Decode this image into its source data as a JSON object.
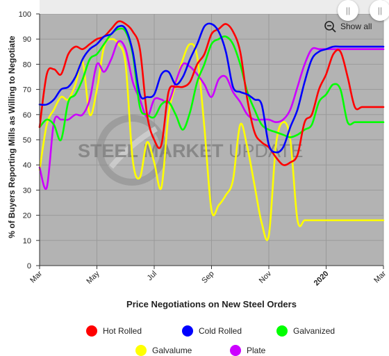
{
  "chart_data": {
    "type": "line",
    "xlabel": "Price Negotiations on New Steel Orders",
    "ylabel": "% of Buyers Reporting Mills as Willing to Negotiate",
    "ylim": [
      0,
      100
    ],
    "yticks": [
      0,
      10,
      20,
      30,
      40,
      50,
      60,
      70,
      80,
      90,
      100
    ],
    "xlim": [
      0,
      24
    ],
    "xticks": [
      {
        "x": 0,
        "label": "Mar",
        "bold": false
      },
      {
        "x": 4,
        "label": "May",
        "bold": false
      },
      {
        "x": 8,
        "label": "Jul",
        "bold": false
      },
      {
        "x": 12,
        "label": "Sep",
        "bold": false
      },
      {
        "x": 16,
        "label": "Nov",
        "bold": false
      },
      {
        "x": 20,
        "label": "2020",
        "bold": true
      },
      {
        "x": 24,
        "label": "Mar",
        "bold": false
      }
    ],
    "grid": true,
    "legend_position": "bottom",
    "watermark": "STEEL MARKET UPDATE",
    "series": [
      {
        "name": "Hot Rolled",
        "color": "#ff0000",
        "x": [
          0,
          0.5,
          1,
          1.5,
          2,
          2.5,
          3,
          3.5,
          4,
          4.5,
          5,
          5.5,
          6,
          6.5,
          7,
          7.5,
          8,
          8.5,
          9,
          9.5,
          10,
          10.5,
          11,
          11.5,
          12,
          12.5,
          13,
          13.5,
          14,
          14.5,
          15,
          15.5,
          16,
          16.5,
          17,
          17.5,
          18,
          18.5,
          19,
          19.5,
          20,
          20.5,
          21,
          21.5,
          22,
          22.5,
          23,
          23.5,
          24
        ],
        "y": [
          55,
          76,
          78,
          76,
          84,
          87,
          86,
          88,
          90,
          91,
          94,
          97,
          96,
          93,
          86,
          60,
          50,
          48,
          69,
          71,
          71,
          73,
          80,
          84,
          92,
          94,
          96,
          93,
          85,
          66,
          53,
          49,
          47,
          43,
          40,
          41,
          44,
          57,
          60,
          70,
          76,
          84,
          85,
          75,
          63,
          63,
          63,
          63,
          63
        ]
      },
      {
        "name": "Cold Rolled",
        "color": "#0000ff",
        "x": [
          0,
          0.5,
          1,
          1.5,
          2,
          2.5,
          3,
          3.5,
          4,
          4.5,
          5,
          5.5,
          6,
          6.5,
          7,
          7.5,
          8,
          8.5,
          9,
          9.5,
          10,
          10.5,
          11,
          11.5,
          12,
          12.5,
          13,
          13.5,
          14,
          14.5,
          15,
          15.5,
          16,
          16.5,
          17,
          17.5,
          18,
          18.5,
          19,
          19.5,
          20,
          20.5,
          21,
          21.5,
          22,
          22.5,
          23,
          23.5,
          24
        ],
        "y": [
          64,
          64,
          66,
          70,
          71,
          75,
          82,
          86,
          88,
          91,
          92,
          95,
          94,
          85,
          68,
          67,
          68,
          76,
          77,
          72,
          75,
          82,
          88,
          95,
          96,
          93,
          85,
          71,
          69,
          68,
          66,
          64,
          48,
          45,
          47,
          55,
          62,
          73,
          82,
          85,
          86,
          87,
          87,
          87,
          87,
          87,
          87,
          87,
          87
        ]
      },
      {
        "name": "Galvanized",
        "color": "#00ff00",
        "x": [
          0,
          0.5,
          1,
          1.5,
          2,
          2.5,
          3,
          3.5,
          4,
          4.5,
          5,
          5.5,
          6,
          6.5,
          7,
          7.5,
          8,
          8.5,
          9,
          9.5,
          10,
          10.5,
          11,
          11.5,
          12,
          12.5,
          13,
          13.5,
          14,
          14.5,
          15,
          15.5,
          16,
          16.5,
          17,
          17.5,
          18,
          18.5,
          19,
          19.5,
          20,
          20.5,
          21,
          21.5,
          22,
          22.5,
          23,
          23.5,
          24
        ],
        "y": [
          55,
          58,
          56,
          50,
          65,
          68,
          74,
          82,
          84,
          88,
          92,
          94,
          93,
          84,
          63,
          60,
          59,
          64,
          65,
          60,
          54,
          61,
          73,
          80,
          88,
          90,
          91,
          88,
          80,
          69,
          62,
          56,
          54,
          53,
          52,
          51,
          52,
          54,
          56,
          65,
          68,
          72,
          70,
          57,
          57,
          57,
          57,
          57,
          57
        ]
      },
      {
        "name": "Galvalume",
        "color": "#ffff00",
        "x": [
          0,
          0.5,
          1,
          1.5,
          2,
          2.5,
          3,
          3.5,
          4,
          4.5,
          5,
          5.5,
          6,
          6.5,
          7,
          7.5,
          8,
          8.5,
          9,
          9.5,
          10,
          10.5,
          11,
          11.5,
          12,
          12.5,
          13,
          13.5,
          14,
          14.5,
          15,
          15.5,
          16,
          16.5,
          17,
          17.5,
          18,
          18.5,
          19,
          19.5,
          20,
          20.5,
          21,
          21.5,
          22,
          22.5,
          23,
          23.5,
          24
        ],
        "y": [
          38,
          56,
          62,
          67,
          66,
          72,
          81,
          60,
          70,
          87,
          90,
          88,
          80,
          42,
          35,
          49,
          41,
          31,
          60,
          72,
          82,
          88,
          83,
          55,
          22,
          24,
          28,
          34,
          56,
          47,
          32,
          17,
          12,
          48,
          57,
          50,
          18,
          18,
          18,
          18,
          18,
          18,
          18,
          18,
          18,
          18,
          18,
          18,
          18
        ]
      },
      {
        "name": "Plate",
        "color": "#cc00ff",
        "x": [
          0,
          0.5,
          1,
          1.5,
          2,
          2.5,
          3,
          3.5,
          4,
          4.5,
          5,
          5.5,
          6,
          6.5,
          7,
          7.5,
          8,
          8.5,
          9,
          9.5,
          10,
          10.5,
          11,
          11.5,
          12,
          12.5,
          13,
          13.5,
          14,
          14.5,
          15,
          15.5,
          16,
          16.5,
          17,
          17.5,
          18,
          18.5,
          19,
          19.5,
          20,
          20.5,
          21,
          21.5,
          22,
          22.5,
          23,
          23.5,
          24
        ],
        "y": [
          39,
          31,
          57,
          58,
          58,
          60,
          60,
          66,
          80,
          77,
          82,
          89,
          86,
          73,
          66,
          59,
          66,
          66,
          65,
          73,
          80,
          79,
          76,
          72,
          67,
          74,
          75,
          69,
          65,
          60,
          58,
          58,
          58,
          57,
          58,
          62,
          71,
          80,
          86,
          86,
          86,
          86,
          86,
          86,
          86,
          86,
          86,
          86,
          86
        ]
      }
    ]
  },
  "controls": {
    "zoom_reset_label": "Show all",
    "scroll_left_icon": "pause-icon",
    "scroll_right_icon": "pause-icon",
    "zoom_icon": "magnifier-minus-icon"
  }
}
